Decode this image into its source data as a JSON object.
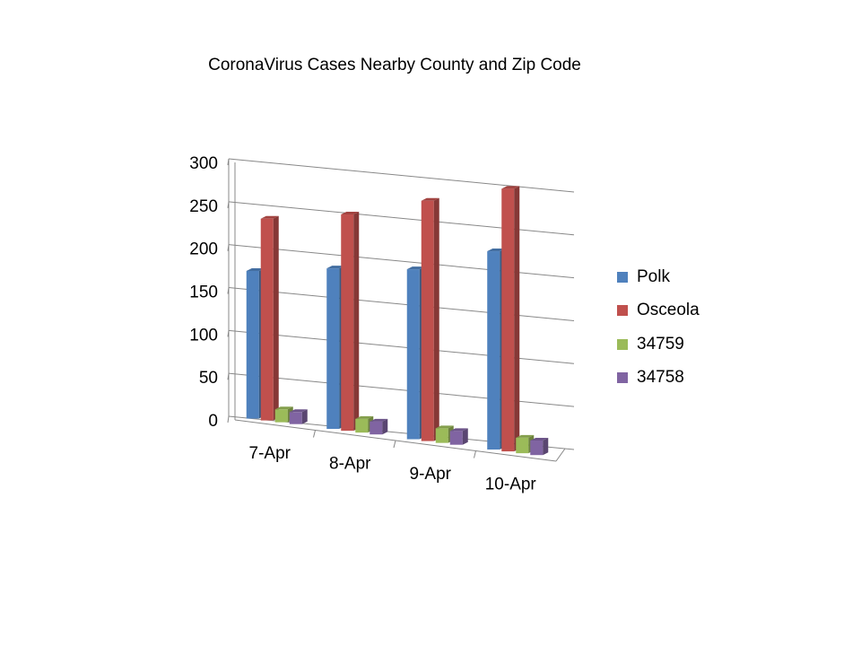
{
  "chart_data": {
    "type": "bar",
    "title": "CoronaVirus Cases Nearby County and Zip Code",
    "categories": [
      "7-Apr",
      "8-Apr",
      "9-Apr",
      "10-Apr"
    ],
    "series": [
      {
        "name": "Polk",
        "color": "#4F81BD",
        "values": [
          172,
          187,
          198,
          231
        ]
      },
      {
        "name": "Osceola",
        "color": "#C0504D",
        "values": [
          235,
          252,
          280,
          306
        ]
      },
      {
        "name": "34759",
        "color": "#9BBB59",
        "values": [
          15,
          16,
          17,
          18
        ]
      },
      {
        "name": "34758",
        "color": "#8064A2",
        "values": [
          14,
          15,
          16,
          17
        ]
      }
    ],
    "ylim": [
      0,
      300
    ],
    "yticks": [
      "0",
      "50",
      "100",
      "150",
      "200",
      "250",
      "300"
    ],
    "grid": true,
    "legend_position": "right",
    "style": "3d-clustered-column"
  }
}
